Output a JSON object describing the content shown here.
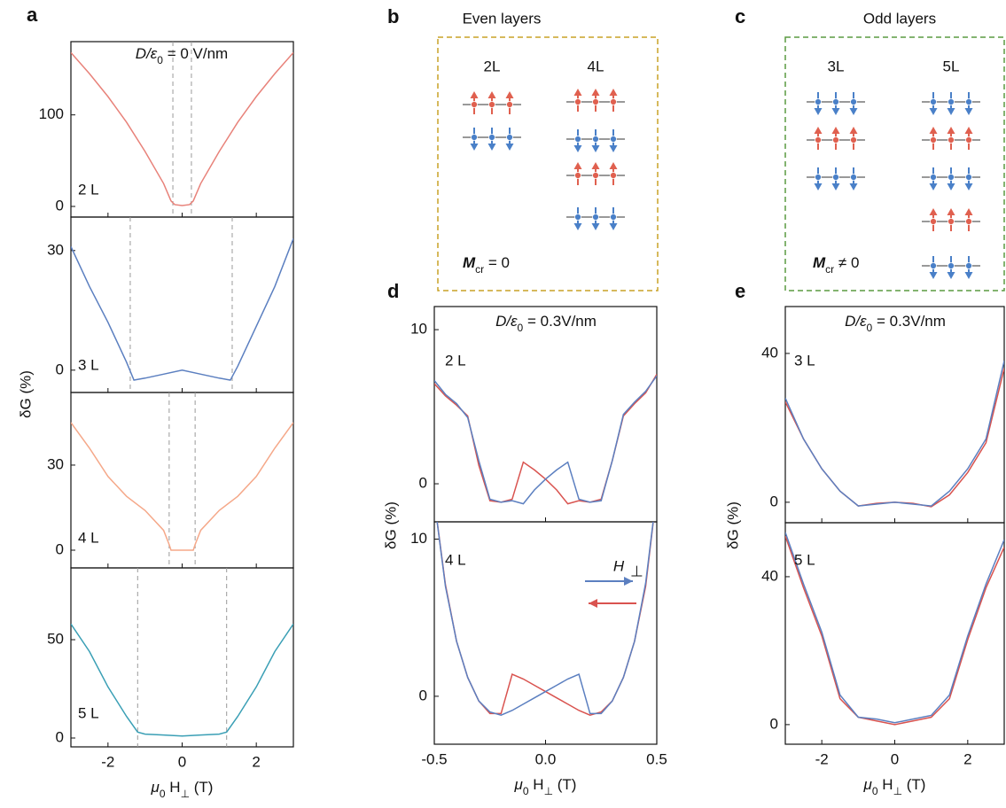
{
  "chart_data": [
    {
      "type": "line",
      "panel_label": "a",
      "field_label": [
        "D/ε",
        "0",
        " = 0 V/nm"
      ],
      "ylabel": "δG (%)",
      "annotation": "2 L",
      "xlim": [
        -3,
        3
      ],
      "ylim": [
        -11.6,
        180
      ],
      "yticks": [
        0,
        100
      ],
      "vlines": [
        -0.25,
        0.25
      ],
      "x": [
        -3,
        -2.5,
        -2,
        -1.5,
        -1,
        -0.5,
        -0.3,
        -0.2,
        0,
        0.2,
        0.3,
        0.5,
        1,
        1.5,
        2,
        2.5,
        3
      ],
      "series": [
        {
          "color": "#e8827a",
          "values": [
            168,
            145,
            120,
            92,
            60,
            25,
            6,
            2,
            1,
            2,
            6,
            25,
            60,
            92,
            120,
            145,
            168
          ]
        }
      ]
    },
    {
      "type": "line",
      "annotation": "3 L",
      "xlim": [
        -3,
        3
      ],
      "ylim": [
        -5.6,
        38.4
      ],
      "yticks": [
        0,
        30
      ],
      "vlines": [
        -1.4,
        1.35
      ],
      "x": [
        -3,
        -2.5,
        -2,
        -1.5,
        -1.3,
        -1,
        -0.5,
        0,
        0.5,
        1,
        1.3,
        1.5,
        2,
        2.5,
        3
      ],
      "series": [
        {
          "color": "#5b7fc0",
          "values": [
            31,
            21,
            12,
            2,
            -2.5,
            -2,
            -1,
            0,
            -1,
            -2,
            -2.5,
            1,
            11,
            21,
            33
          ]
        }
      ]
    },
    {
      "type": "line",
      "annotation": "4 L",
      "xlim": [
        -3,
        3
      ],
      "ylim": [
        -6.25,
        55.6
      ],
      "yticks": [
        0,
        30
      ],
      "vlines": [
        -0.35,
        0.35
      ],
      "x": [
        -3,
        -2.5,
        -2,
        -1.5,
        -1,
        -0.5,
        -0.35,
        -0.3,
        0,
        0.3,
        0.35,
        0.5,
        1,
        1.5,
        2,
        2.5,
        3
      ],
      "series": [
        {
          "color": "#f5a889",
          "values": [
            45,
            36,
            26,
            19,
            14,
            7,
            2,
            0,
            0,
            0,
            2,
            7,
            14,
            19,
            26,
            36,
            45
          ]
        }
      ]
    },
    {
      "type": "line",
      "annotation": "5 L",
      "xlabel": [
        "μ",
        "0",
        " H",
        "⊥",
        " (T)"
      ],
      "xlim": [
        -3,
        3
      ],
      "xticks": [
        -2,
        0,
        2
      ],
      "ylim": [
        -4.5,
        86.5
      ],
      "yticks": [
        0,
        50
      ],
      "vlines": [
        -1.2,
        1.2
      ],
      "x": [
        -3,
        -2.5,
        -2,
        -1.5,
        -1.2,
        -1,
        -0.5,
        0,
        0.5,
        1,
        1.2,
        1.5,
        2,
        2.5,
        3
      ],
      "series": [
        {
          "color": "#3a9fb5",
          "values": [
            58,
            44,
            26,
            11,
            3,
            2,
            1.5,
            1,
            1.5,
            2,
            3,
            11,
            26,
            44,
            58
          ]
        }
      ]
    },
    {
      "type": "line",
      "panel_label": "d",
      "field_label": [
        "D/ε",
        "0",
        " = 0.3V/nm"
      ],
      "ylabel": "δG (%)",
      "annotation": "2 L",
      "xlim": [
        -0.5,
        0.5
      ],
      "ylim": [
        -2.47,
        11.5
      ],
      "yticks": [
        0,
        10
      ],
      "x": [
        -0.5,
        -0.45,
        -0.4,
        -0.35,
        -0.3,
        -0.25,
        -0.2,
        -0.15,
        -0.1,
        -0.05,
        0,
        0.05,
        0.1,
        0.15,
        0.2,
        0.25,
        0.3,
        0.35,
        0.4,
        0.45,
        0.5
      ],
      "series": [
        {
          "color": "#d9534f",
          "values": [
            6.5,
            5.7,
            5.1,
            4.4,
            1.2,
            -1.1,
            -1.2,
            -1.0,
            1.4,
            0.9,
            0.3,
            -0.4,
            -1.3,
            -1.1,
            -1.2,
            -1.0,
            1.5,
            4.4,
            5.2,
            5.9,
            7.1
          ]
        },
        {
          "color": "#5b7fc0",
          "values": [
            6.7,
            5.8,
            5.2,
            4.3,
            1.5,
            -1.0,
            -1.2,
            -1.1,
            -1.3,
            -0.4,
            0.3,
            0.9,
            1.4,
            -1.0,
            -1.2,
            -1.1,
            1.5,
            4.5,
            5.3,
            6.0,
            7.0
          ]
        }
      ]
    },
    {
      "type": "line",
      "annotation": "4 L",
      "legend_label": [
        "H",
        "⊥"
      ],
      "xlabel": [
        "μ",
        "0",
        " H",
        "⊥",
        " (T)"
      ],
      "xlim": [
        -0.5,
        0.5
      ],
      "xticks": [
        -0.5,
        {
          "value": 0,
          "label": "0.0"
        },
        0.5
      ],
      "ylim": [
        -3.05,
        11.1
      ],
      "yticks": [
        0,
        10
      ],
      "x": [
        -0.5,
        -0.45,
        -0.4,
        -0.35,
        -0.3,
        -0.25,
        -0.2,
        -0.15,
        -0.1,
        -0.05,
        0,
        0.05,
        0.1,
        0.15,
        0.2,
        0.25,
        0.3,
        0.35,
        0.4,
        0.45,
        0.5
      ],
      "series": [
        {
          "color": "#d9534f",
          "values": [
            12.5,
            7.1,
            3.5,
            1.2,
            -0.3,
            -1.1,
            -1.1,
            1.4,
            1.1,
            0.7,
            0.3,
            -0.1,
            -0.5,
            -0.9,
            -1.2,
            -1.0,
            -0.3,
            1.2,
            3.5,
            7.0,
            13
          ]
        },
        {
          "color": "#5b7fc0",
          "values": [
            12.5,
            7.0,
            3.5,
            1.2,
            -0.3,
            -1.0,
            -1.2,
            -0.9,
            -0.5,
            -0.1,
            0.3,
            0.7,
            1.1,
            1.4,
            -1.1,
            -1.1,
            -0.3,
            1.2,
            3.5,
            7.2,
            13
          ]
        }
      ]
    },
    {
      "type": "line",
      "panel_label": "e",
      "field_label": [
        "D/ε",
        "0",
        " = 0.3V/nm"
      ],
      "ylabel": "δG (%)",
      "annotation": "3 L",
      "xlim": [
        -3,
        3
      ],
      "ylim": [
        -5.5,
        52.6
      ],
      "yticks": [
        0,
        40
      ],
      "x": [
        -3,
        -2.5,
        -2,
        -1.5,
        -1,
        -0.5,
        0,
        0.5,
        1,
        1.5,
        2,
        2.5,
        3
      ],
      "series": [
        {
          "color": "#d9534f",
          "values": [
            27,
            17,
            9,
            3,
            -1,
            -0.3,
            0,
            -0.3,
            -1.2,
            2,
            8,
            16,
            36
          ]
        },
        {
          "color": "#5b7fc0",
          "values": [
            28,
            17,
            9,
            3,
            -1,
            -0.5,
            0,
            -0.5,
            -1,
            3,
            9,
            17,
            38
          ]
        }
      ]
    },
    {
      "type": "line",
      "annotation": "5 L",
      "xlabel": [
        "μ",
        "0",
        " H",
        "⊥",
        " (T)"
      ],
      "xlim": [
        -3,
        3
      ],
      "xticks": [
        -2,
        0,
        2
      ],
      "ylim": [
        -5.3,
        54.6
      ],
      "yticks": [
        0,
        40
      ],
      "x": [
        -3,
        -2.5,
        -2,
        -1.5,
        -1,
        -0.5,
        0,
        0.5,
        1,
        1.5,
        2,
        2.5,
        3
      ],
      "series": [
        {
          "color": "#d9534f",
          "values": [
            51,
            37,
            24,
            7,
            2,
            1,
            0,
            1,
            2,
            7,
            23,
            37,
            48
          ]
        },
        {
          "color": "#5b7fc0",
          "values": [
            52,
            38,
            25,
            8,
            2,
            1.5,
            0.5,
            1.5,
            2.5,
            8,
            24,
            38,
            50
          ]
        }
      ]
    }
  ],
  "diagrams": [
    {
      "panel_label": "b",
      "title": "Even layers",
      "stacks": [
        {
          "label": "2L"
        },
        {
          "label": "4L"
        }
      ],
      "order_parameter": [
        "M",
        "cr",
        " = 0"
      ]
    },
    {
      "panel_label": "c",
      "title": "Odd layers",
      "stacks": [
        {
          "label": "3L"
        },
        {
          "label": "5L"
        }
      ],
      "order_parameter": [
        "M",
        "cr",
        " ≠ 0"
      ]
    }
  ]
}
